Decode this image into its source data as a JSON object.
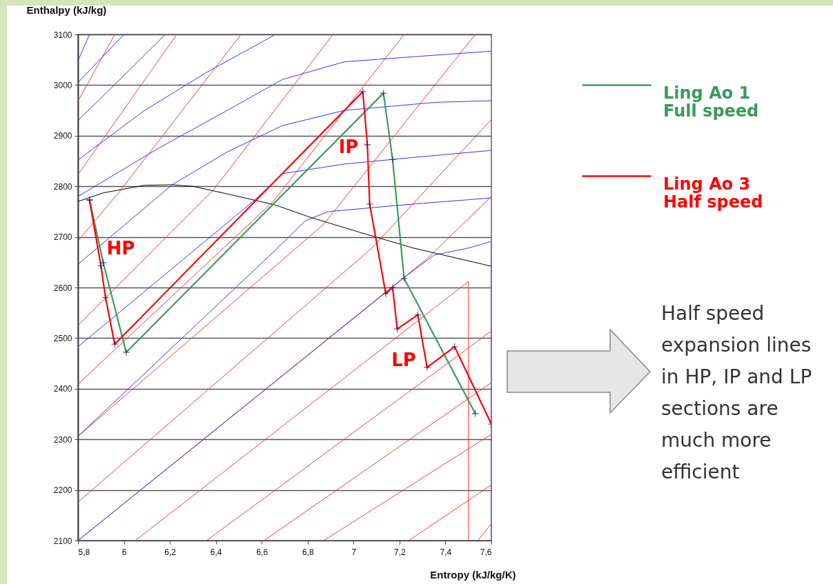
{
  "chart_data": {
    "type": "line",
    "xlabel": "Entropy (kJ/kg/K)",
    "ylabel": "Enthalpy (kJ/kg)",
    "xlim": [
      5.8,
      7.6
    ],
    "ylim": [
      2100,
      3100
    ],
    "xticks": [
      {
        "value": 5.8,
        "label": "5,8"
      },
      6,
      {
        "value": 6.2,
        "label": "6,2"
      },
      {
        "value": 6.4,
        "label": "6,4"
      },
      {
        "value": 6.6,
        "label": "6,6"
      },
      {
        "value": 6.8,
        "label": "6,8"
      },
      7,
      {
        "value": 7.2,
        "label": "7,2"
      },
      {
        "value": 7.4,
        "label": "7,4"
      },
      {
        "value": 7.6,
        "label": "7,6"
      }
    ],
    "yticks": [
      2100,
      2200,
      2300,
      2400,
      2500,
      2600,
      2700,
      2800,
      2900,
      3000,
      3100
    ],
    "grid": "y",
    "legend": "top right",
    "line_style": "solid",
    "series": [
      {
        "color": "#ff3333",
        "x": [
          5.8,
          5.96
        ],
        "values": [
          2968,
          3100
        ]
      },
      {
        "color": "#ff3333",
        "x": [
          5.8,
          6.23
        ],
        "values": [
          2823,
          3100
        ]
      },
      {
        "color": "#ff3333",
        "x": [
          5.8,
          5.98,
          6.51
        ],
        "values": [
          2692,
          2789,
          3100
        ]
      },
      {
        "color": "#ff3333",
        "x": [
          5.8,
          6.39,
          6.91
        ],
        "values": [
          2525,
          2793,
          3100
        ]
      },
      {
        "color": "#ff3333",
        "x": [
          5.8,
          6.65,
          7.22
        ],
        "values": [
          2409,
          2770,
          3100
        ]
      },
      {
        "color": "#ff3333",
        "x": [
          5.8,
          6.87,
          7.53
        ],
        "values": [
          2306,
          2725,
          3100
        ]
      },
      {
        "color": "#ff3333",
        "x": [
          5.8,
          7.08,
          7.6
        ],
        "values": [
          2176,
          2678,
          2932
        ]
      },
      {
        "color": "#ff3333",
        "x": [
          5.8,
          7.32,
          7.6
        ],
        "values": [
          2100,
          2657,
          2780
        ]
      },
      {
        "color": "#ff3333",
        "x": [
          6.05,
          7.5,
          7.5
        ],
        "values": [
          2100,
          2612,
          2100
        ]
      },
      {
        "color": "#ff3333",
        "x": [
          6.36,
          7.6
        ],
        "values": [
          2100,
          2514
        ]
      },
      {
        "color": "#ff3333",
        "x": [
          6.61,
          7.6
        ],
        "values": [
          2100,
          2412
        ]
      },
      {
        "color": "#ff3333",
        "x": [
          6.87,
          7.6
        ],
        "values": [
          2100,
          2310
        ]
      },
      {
        "color": "#ff3333",
        "x": [
          7.24,
          7.6
        ],
        "values": [
          2100,
          2210
        ]
      },
      {
        "color": "#ff3333",
        "x": [
          7.54,
          7.6
        ],
        "values": [
          2100,
          2133
        ]
      },
      {
        "color": "#3333ff",
        "x": [
          5.8,
          5.85
        ],
        "values": [
          3048,
          3100
        ]
      },
      {
        "color": "#3333ff",
        "x": [
          5.8,
          6.0
        ],
        "values": [
          3005,
          3100
        ]
      },
      {
        "color": "#3333ff",
        "x": [
          5.8,
          5.96,
          6.18
        ],
        "values": [
          2930,
          3001,
          3100
        ]
      },
      {
        "color": "#3333ff",
        "x": [
          5.8,
          6.09,
          6.36,
          6.66
        ],
        "values": [
          2852,
          2950,
          3025,
          3100
        ]
      },
      {
        "color": "#3333ff",
        "x": [
          5.8,
          6.15,
          6.45,
          6.69,
          6.96,
          7.26,
          7.6
        ],
        "values": [
          2780,
          2875,
          2950,
          3011,
          3046,
          3056,
          3067
        ]
      },
      {
        "color": "#3333ff",
        "x": [
          5.8,
          6.21,
          6.45,
          6.69,
          6.96,
          7.36,
          7.6
        ],
        "values": [
          2646,
          2803,
          2868,
          2920,
          2950,
          2966,
          2969
        ]
      },
      {
        "color": "#3333ff",
        "x": [
          5.8,
          6.57,
          6.69,
          6.96,
          7.26,
          7.6
        ],
        "values": [
          2483,
          2773,
          2825,
          2844,
          2857,
          2871
        ]
      },
      {
        "color": "#3333ff",
        "x": [
          5.8,
          6.66,
          6.79,
          6.89,
          7.26,
          7.6
        ],
        "values": [
          2306,
          2674,
          2732,
          2750,
          2765,
          2777
        ]
      },
      {
        "color": "#3333ff",
        "x": [
          5.8,
          7.23,
          7.35,
          7.5,
          7.6,
          7.6
        ],
        "values": [
          2100,
          2623,
          2664,
          2678,
          2691,
          2100
        ]
      },
      {
        "color": "#000000",
        "x": [
          5.8,
          5.91,
          6.09,
          6.21,
          6.3,
          6.45,
          6.66,
          6.81,
          7.02,
          7.26,
          7.6
        ],
        "values": [
          2770,
          2787,
          2802,
          2803,
          2800,
          2785,
          2763,
          2739,
          2710,
          2678,
          2642
        ]
      },
      {
        "name": "Ling Ao 1 Full speed",
        "color": "#3a9a5c",
        "marker": "cross",
        "x": [
          5.85,
          5.91,
          6.01,
          7.13,
          7.17,
          7.22,
          7.53
        ],
        "values": [
          2773,
          2649,
          2472,
          2984,
          2853,
          2618,
          2351
        ]
      },
      {
        "name": "Ling Ao 3 Half speed",
        "color": "#ff0000",
        "marker": "cross",
        "x": [
          5.85,
          5.9,
          5.92,
          5.96,
          7.04,
          7.06,
          7.07,
          7.14,
          7.17,
          7.19,
          7.28,
          7.32,
          7.44,
          7.6
        ],
        "values": [
          2773,
          2643,
          2580,
          2488,
          2987,
          2882,
          2765,
          2588,
          2600,
          2518,
          2546,
          2442,
          2483,
          2330
        ]
      }
    ],
    "annotations": [
      "Half speed expansion lines in HP, IP and LP sections are much more efficient",
      "HP",
      "IP",
      "LP"
    ]
  }
}
